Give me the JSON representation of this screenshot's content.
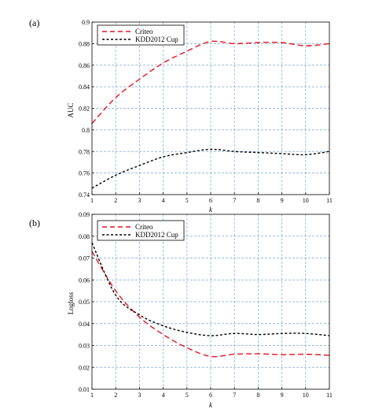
{
  "chart_data": [
    {
      "type": "line",
      "panel_label": "(a)",
      "xlabel": "k",
      "ylabel": "AUC",
      "x": [
        1,
        2,
        3,
        4,
        5,
        6,
        7,
        8,
        9,
        10,
        11
      ],
      "xlim": [
        1,
        11
      ],
      "ylim": [
        0.74,
        0.9
      ],
      "yticks": [
        0.74,
        0.76,
        0.78,
        0.8,
        0.82,
        0.84,
        0.86,
        0.88,
        0.9
      ],
      "ytick_labels": [
        "0.74",
        "0.76",
        "0.78",
        "0.8",
        "0.82",
        "0.84",
        "0.86",
        "0.88",
        "0.9"
      ],
      "grid": true,
      "legend_position": "top-left",
      "series": [
        {
          "name": "Criteo",
          "color": "#e8141e",
          "style": "dashed",
          "values": [
            0.806,
            0.83,
            0.847,
            0.862,
            0.873,
            0.882,
            0.88,
            0.881,
            0.881,
            0.878,
            0.88
          ]
        },
        {
          "name": "KDD2012 Cup",
          "color": "#000000",
          "style": "dashed",
          "values": [
            0.746,
            0.758,
            0.767,
            0.775,
            0.779,
            0.782,
            0.78,
            0.779,
            0.778,
            0.777,
            0.78
          ]
        }
      ]
    },
    {
      "type": "line",
      "panel_label": "(b)",
      "xlabel": "k",
      "ylabel": "Logloss",
      "x": [
        1,
        2,
        3,
        4,
        5,
        6,
        7,
        8,
        9,
        10,
        11
      ],
      "xlim": [
        1,
        11
      ],
      "ylim": [
        0.01,
        0.09
      ],
      "yticks": [
        0.01,
        0.02,
        0.03,
        0.04,
        0.05,
        0.06,
        0.07,
        0.08,
        0.09
      ],
      "ytick_labels": [
        "0.01",
        "0.02",
        "0.03",
        "0.04",
        "0.05",
        "0.06",
        "0.07",
        "0.08",
        "0.09"
      ],
      "grid": true,
      "legend_position": "top-left",
      "series": [
        {
          "name": "Criteo",
          "color": "#e8141e",
          "style": "dashed",
          "values": [
            0.073,
            0.055,
            0.043,
            0.035,
            0.029,
            0.025,
            0.026,
            0.0262,
            0.0258,
            0.026,
            0.0255
          ]
        },
        {
          "name": "KDD2012 Cup",
          "color": "#000000",
          "style": "dashed",
          "values": [
            0.077,
            0.053,
            0.044,
            0.039,
            0.036,
            0.0345,
            0.0355,
            0.035,
            0.0355,
            0.0355,
            0.0345
          ]
        }
      ]
    }
  ]
}
